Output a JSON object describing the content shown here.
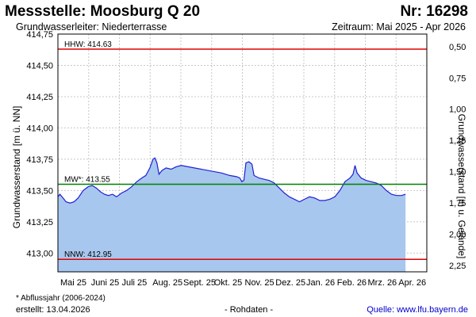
{
  "header": {
    "title": "Messstelle: Moosburg Q 20",
    "number": "Nr: 16298",
    "aquifer": "Grundwasserleiter:   Niederterrasse",
    "period": "Zeitraum: Mai 2025 - Apr 2026"
  },
  "footer": {
    "footnote": "* Abflussjahr (2006-2024)",
    "created": "erstellt:  13.04.2026",
    "raw_data": "- Rohdaten -",
    "source": "Quelle:  www.lfu.bayern.de"
  },
  "colors": {
    "fill": "#a7c7ee",
    "line": "#1f1fd6",
    "hhw": "#e00000",
    "mw": "#008000",
    "nnw": "#e00000",
    "grid": "#c8c8c8"
  },
  "chart_data": {
    "type": "area",
    "ylabel": "Grundwasserstand [m ü. NN]",
    "y2label": "Grundwasserstand [m u. Gelände]",
    "ylim": [
      412.85,
      414.75
    ],
    "yticks": [
      "414,75",
      "414,50",
      "414,25",
      "414,00",
      "413,75",
      "413,50",
      "413,25",
      "413,00"
    ],
    "y2lim": [
      0.4,
      2.3
    ],
    "y2ticks": [
      "0,50",
      "0,75",
      "1,00",
      "1,25",
      "1,50",
      "1,75",
      "2,00",
      "2,25"
    ],
    "xlim": [
      "2025-05-01",
      "2026-05-01"
    ],
    "xticks": [
      "Mai 25",
      "Juni 25",
      "Juli 25",
      "Aug. 25",
      "Sept. 25",
      "Okt. 25",
      "Nov. 25",
      "Dez. 25",
      "Jan. 26",
      "Feb. 26",
      "Mrz. 26",
      "Apr. 26"
    ],
    "grid": true,
    "reference_lines": [
      {
        "name": "HHW",
        "label": "HHW: 414.63",
        "value": 414.63
      },
      {
        "name": "MW*",
        "label": "MW*: 413.55",
        "value": 413.55
      },
      {
        "name": "NNW",
        "label": "NNW: 412.95",
        "value": 412.95
      }
    ],
    "series": [
      {
        "values": [
          [
            "2025-05-01",
            413.45
          ],
          [
            "2025-05-03",
            413.47
          ],
          [
            "2025-05-06",
            413.44
          ],
          [
            "2025-05-09",
            413.41
          ],
          [
            "2025-05-13",
            413.4
          ],
          [
            "2025-05-17",
            413.41
          ],
          [
            "2025-05-21",
            413.44
          ],
          [
            "2025-05-26",
            413.5
          ],
          [
            "2025-05-31",
            413.53
          ],
          [
            "2025-06-04",
            413.54
          ],
          [
            "2025-06-08",
            413.52
          ],
          [
            "2025-06-12",
            413.49
          ],
          [
            "2025-06-16",
            413.47
          ],
          [
            "2025-06-20",
            413.46
          ],
          [
            "2025-06-24",
            413.47
          ],
          [
            "2025-06-28",
            413.45
          ],
          [
            "2025-07-03",
            413.48
          ],
          [
            "2025-07-08",
            413.5
          ],
          [
            "2025-07-13",
            413.53
          ],
          [
            "2025-07-18",
            413.57
          ],
          [
            "2025-07-23",
            413.6
          ],
          [
            "2025-07-27",
            413.62
          ],
          [
            "2025-07-31",
            413.68
          ],
          [
            "2025-08-03",
            413.75
          ],
          [
            "2025-08-05",
            413.76
          ],
          [
            "2025-08-07",
            413.72
          ],
          [
            "2025-08-09",
            413.63
          ],
          [
            "2025-08-12",
            413.66
          ],
          [
            "2025-08-16",
            413.68
          ],
          [
            "2025-08-21",
            413.67
          ],
          [
            "2025-08-26",
            413.69
          ],
          [
            "2025-08-31",
            413.7
          ],
          [
            "2025-10-10",
            413.64
          ],
          [
            "2025-10-18",
            413.62
          ],
          [
            "2025-10-25",
            413.61
          ],
          [
            "2025-10-28",
            413.6
          ],
          [
            "2025-10-30",
            413.57
          ],
          [
            "2025-11-01",
            413.58
          ],
          [
            "2025-11-03",
            413.72
          ],
          [
            "2025-11-06",
            413.73
          ],
          [
            "2025-11-09",
            413.71
          ],
          [
            "2025-11-11",
            413.62
          ],
          [
            "2025-11-16",
            413.6
          ],
          [
            "2025-11-21",
            413.59
          ],
          [
            "2025-11-26",
            413.58
          ],
          [
            "2025-12-01",
            413.56
          ],
          [
            "2025-12-06",
            413.52
          ],
          [
            "2025-12-11",
            413.48
          ],
          [
            "2025-12-16",
            413.45
          ],
          [
            "2025-12-21",
            413.43
          ],
          [
            "2025-12-26",
            413.41
          ],
          [
            "2025-12-31",
            413.43
          ],
          [
            "2026-01-05",
            413.45
          ],
          [
            "2026-01-10",
            413.44
          ],
          [
            "2026-01-15",
            413.42
          ],
          [
            "2026-01-20",
            413.42
          ],
          [
            "2026-01-25",
            413.43
          ],
          [
            "2026-01-30",
            413.45
          ],
          [
            "2026-02-04",
            413.5
          ],
          [
            "2026-02-09",
            413.57
          ],
          [
            "2026-02-14",
            413.6
          ],
          [
            "2026-02-17",
            413.63
          ],
          [
            "2026-02-19",
            413.7
          ],
          [
            "2026-02-21",
            413.64
          ],
          [
            "2026-02-25",
            413.6
          ],
          [
            "2026-03-02",
            413.58
          ],
          [
            "2026-03-07",
            413.57
          ],
          [
            "2026-03-12",
            413.56
          ],
          [
            "2026-03-17",
            413.54
          ],
          [
            "2026-03-22",
            413.5
          ],
          [
            "2026-03-27",
            413.47
          ],
          [
            "2026-04-01",
            413.46
          ],
          [
            "2026-04-06",
            413.46
          ],
          [
            "2026-04-10",
            413.47
          ]
        ]
      }
    ]
  }
}
